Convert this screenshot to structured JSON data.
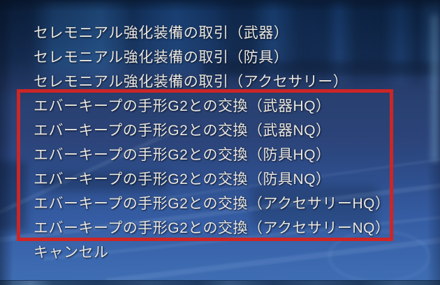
{
  "dialog": {
    "items": [
      "セレモニアル強化装備の取引（武器）",
      "セレモニアル強化装備の取引（防具）",
      "セレモニアル強化装備の取引（アクセサリー）",
      "エバーキープの手形G2との交換（武器HQ）",
      "エバーキープの手形G2との交換（武器NQ）",
      "エバーキープの手形G2との交換（防具HQ）",
      "エバーキープの手形G2との交換（防具NQ）",
      "エバーキープの手形G2との交換（アクセサリーHQ）",
      "エバーキープの手形G2との交換（アクセサリーNQ）",
      "キャンセル"
    ],
    "text_color": "#eae8e3"
  },
  "annotation": {
    "highlight_color": "#cc2626",
    "highlighted_items_first": "エバーキープの手形G2との交換（武器HQ）",
    "highlighted_items_last": "エバーキープの手形G2との交換（アクセサリーNQ）"
  }
}
